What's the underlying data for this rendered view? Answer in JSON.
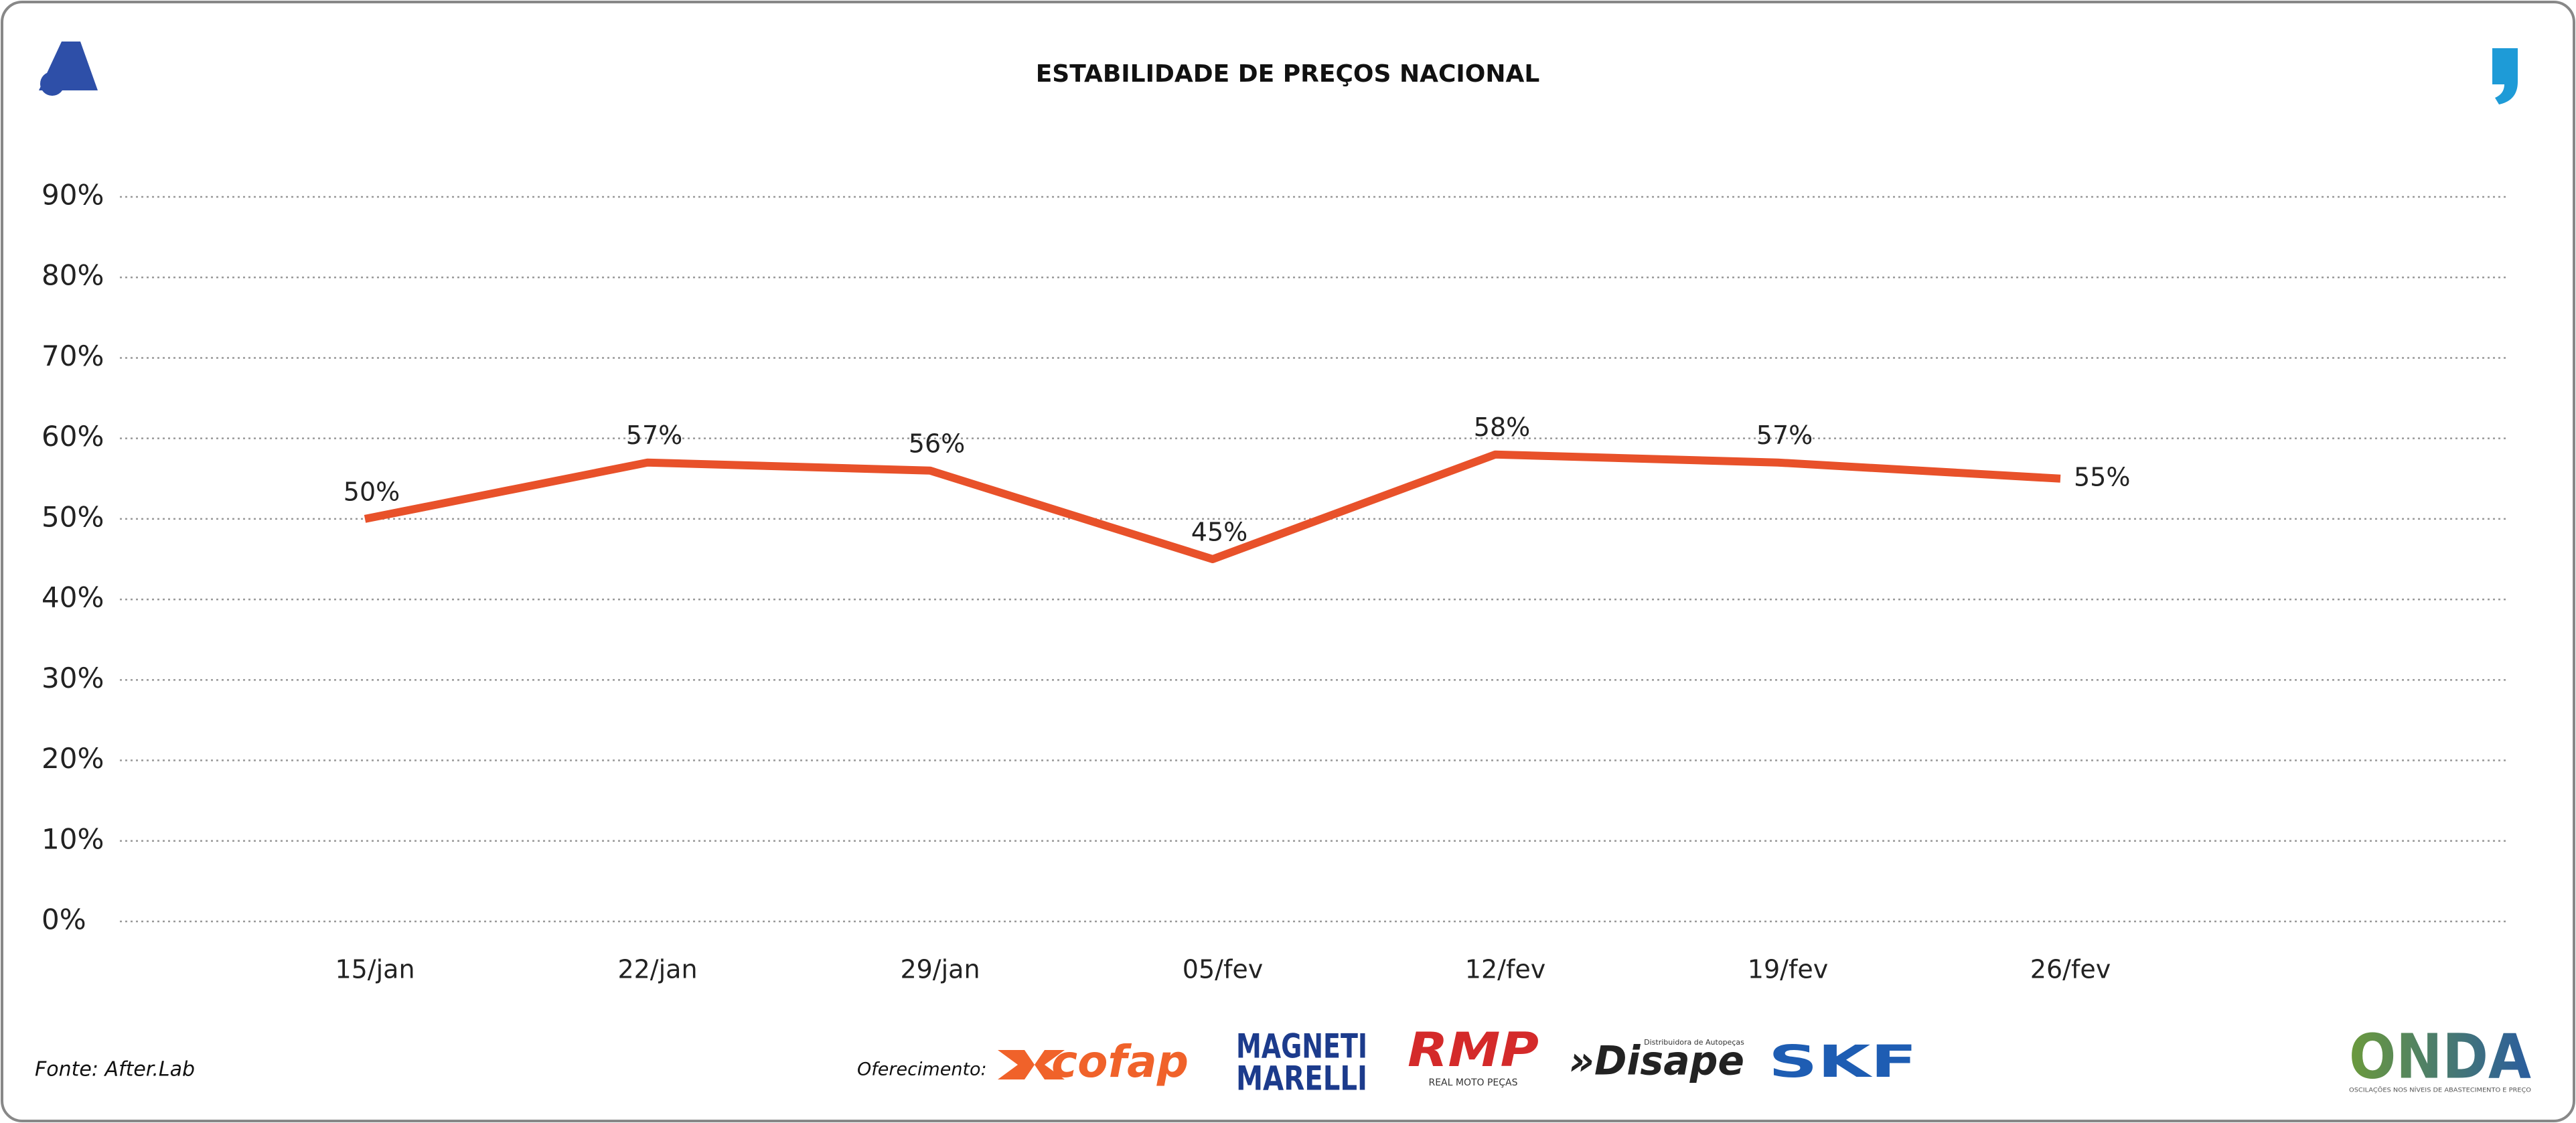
{
  "chart_data": {
    "type": "line",
    "title": "ESTABILIDADE DE PREÇOS NACIONAL",
    "categories": [
      "15/jan",
      "22/jan",
      "29/jan",
      "05/fev",
      "12/fev",
      "19/fev",
      "26/fev"
    ],
    "series": [
      {
        "color": "#e8512a",
        "values": [
          50,
          57,
          56,
          45,
          58,
          57,
          55
        ],
        "value_labels": [
          "50%",
          "57%",
          "56%",
          "45%",
          "58%",
          "57%",
          "55%"
        ]
      }
    ],
    "ylim": [
      0,
      90
    ],
    "yticks": [
      {
        "value": 0,
        "label": "0%"
      },
      {
        "value": 10,
        "label": "10%"
      },
      {
        "value": 20,
        "label": "20%"
      },
      {
        "value": 30,
        "label": "30%"
      },
      {
        "value": 40,
        "label": "40%"
      },
      {
        "value": 50,
        "label": "50%"
      },
      {
        "value": 60,
        "label": "60%"
      },
      {
        "value": 70,
        "label": "70%"
      },
      {
        "value": 80,
        "label": "80%"
      },
      {
        "value": 90,
        "label": "90%"
      }
    ],
    "grid": true
  },
  "footer": {
    "source": "Fonte: After.Lab",
    "sponsor_label": "Oferecimento:",
    "sponsors": {
      "cofap": "cofap",
      "magneti": "MAGNETI",
      "marelli": "MARELLI",
      "rmp": "RMP",
      "rmp_sub": "REAL MOTO PEÇAS",
      "disape": "»Disape",
      "disape_sub": "Distribuidora de Autopeças",
      "skf": "SKF",
      "onda": "ONDA",
      "onda_sub": "OSCILAÇÕES NOS NÍVEIS DE ABASTECIMENTO E PREÇO"
    }
  }
}
